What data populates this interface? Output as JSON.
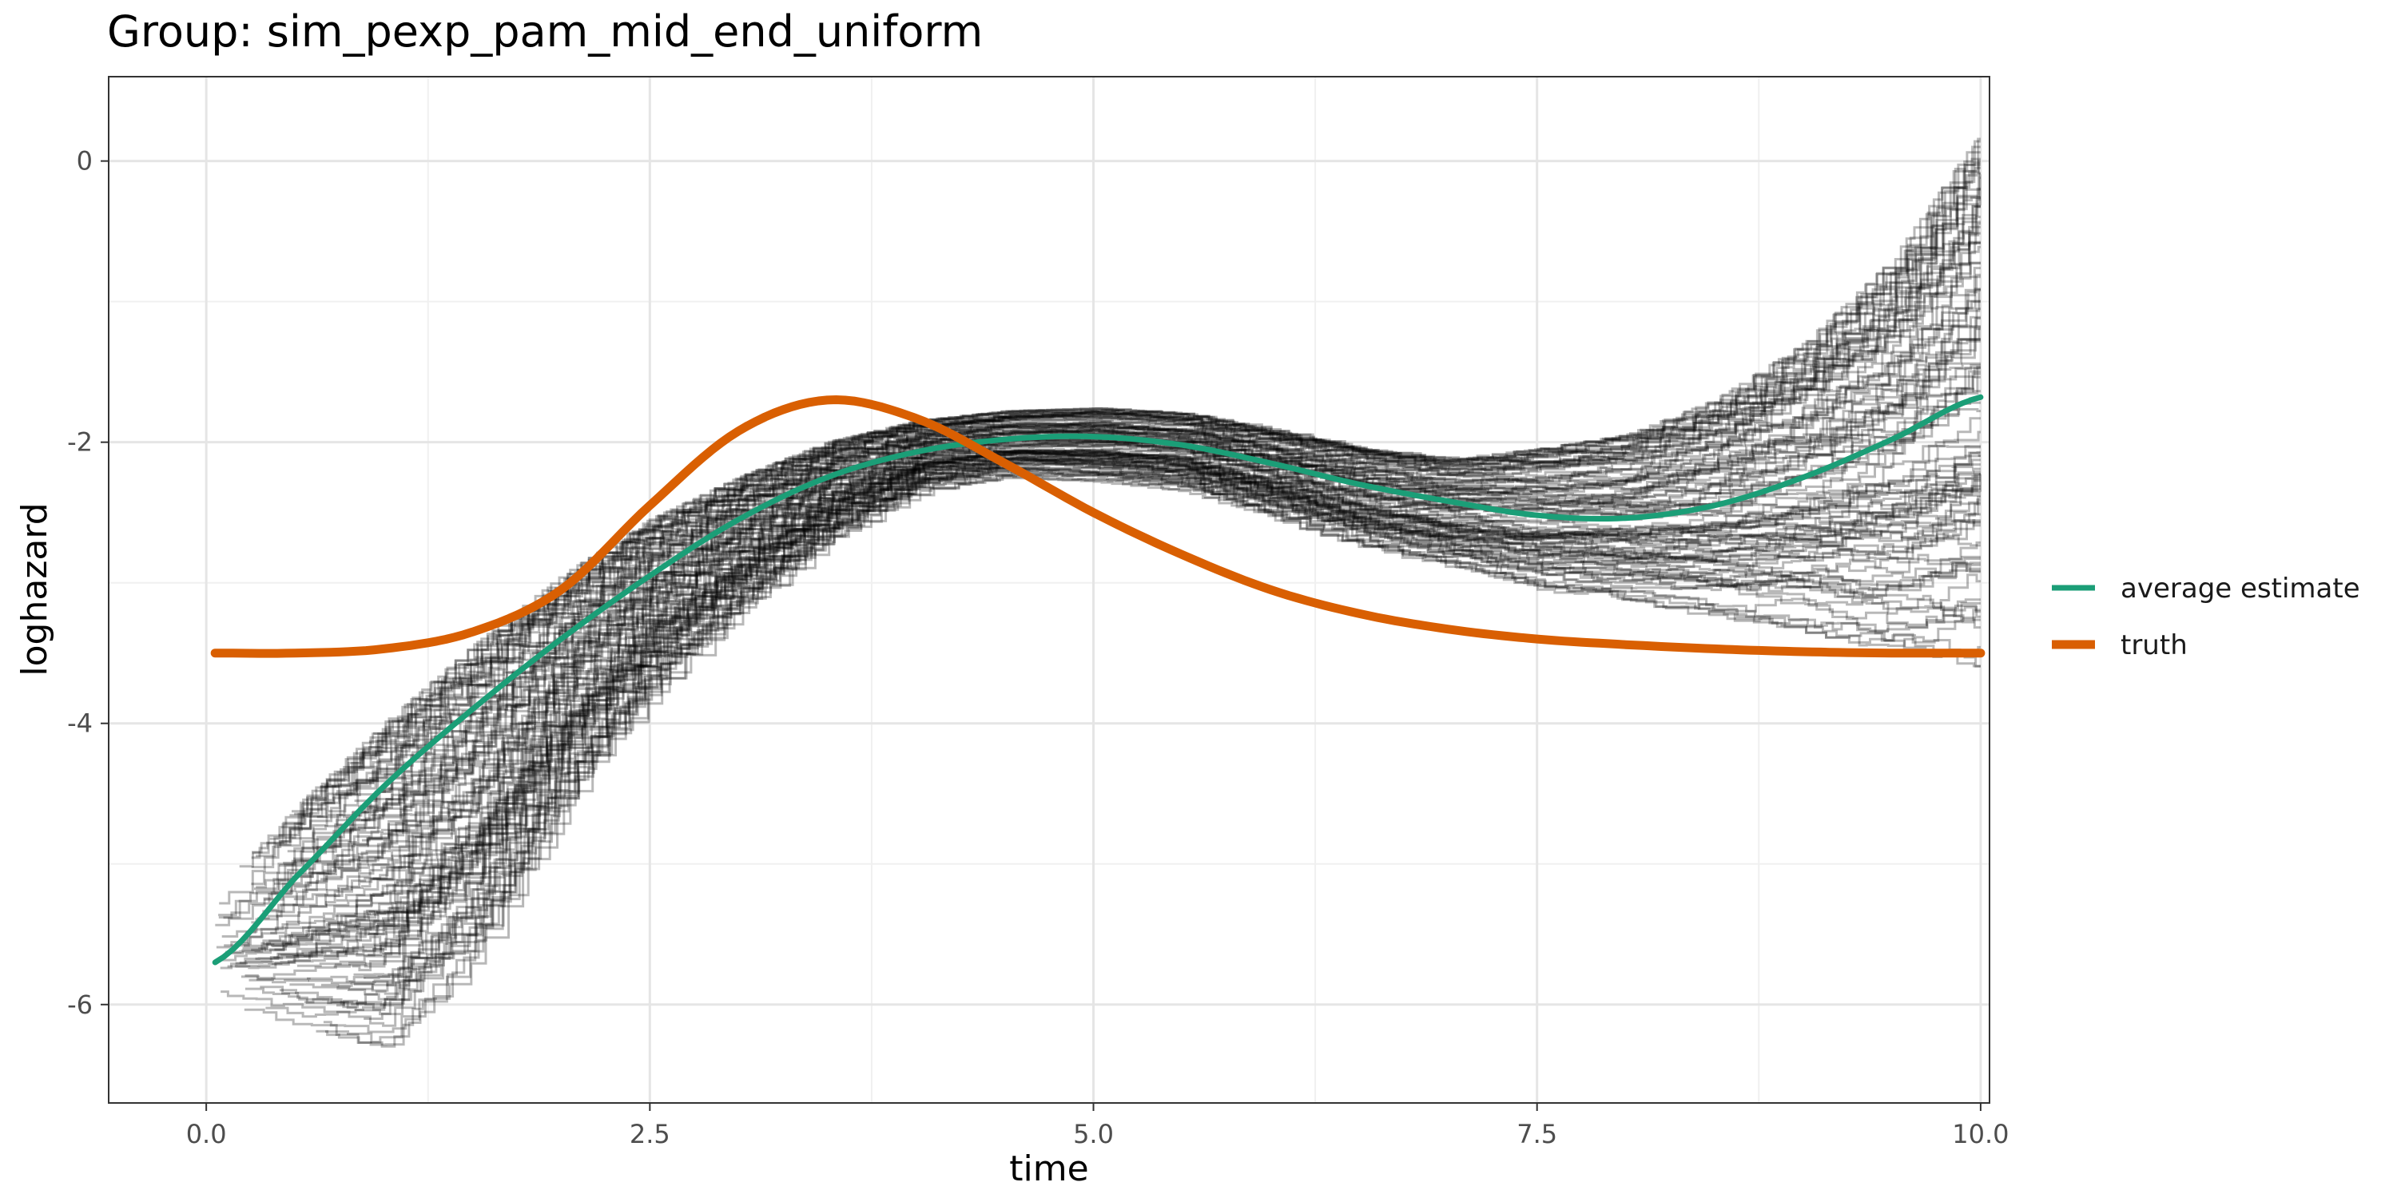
{
  "chart_data": {
    "type": "line",
    "title": "Group: sim_pexp_pam_mid_end_uniform",
    "xlabel": "time",
    "ylabel": "loghazard",
    "xlim": [
      -0.55,
      10.05
    ],
    "ylim": [
      -6.7,
      0.6
    ],
    "x_ticks": [
      0,
      2.5,
      5,
      7.5,
      10
    ],
    "x_tick_labels": [
      "0.0",
      "2.5",
      "5.0",
      "7.5",
      "10.0"
    ],
    "y_ticks": [
      0,
      -2,
      -4,
      -6
    ],
    "y_tick_labels": [
      "0",
      "-2",
      "-4",
      "-6"
    ],
    "grid": true,
    "legend_position": "right",
    "series": [
      {
        "name": "average estimate",
        "color": "#1b9e77",
        "x": [
          0.05,
          0.5,
          1.0,
          1.5,
          2.0,
          2.5,
          3.0,
          3.5,
          4.0,
          4.5,
          5.0,
          5.5,
          6.0,
          6.5,
          7.0,
          7.5,
          8.0,
          8.5,
          9.0,
          9.5,
          10.0
        ],
        "y": [
          -5.7,
          -5.1,
          -4.45,
          -3.9,
          -3.4,
          -2.95,
          -2.55,
          -2.25,
          -2.07,
          -1.98,
          -1.96,
          -2.02,
          -2.15,
          -2.3,
          -2.42,
          -2.52,
          -2.54,
          -2.45,
          -2.25,
          -1.98,
          -1.68
        ]
      },
      {
        "name": "truth",
        "color": "#d95f02",
        "x": [
          0.05,
          0.5,
          1.0,
          1.5,
          2.0,
          2.5,
          3.0,
          3.5,
          4.0,
          4.5,
          5.0,
          5.5,
          6.0,
          6.5,
          7.0,
          7.5,
          8.0,
          8.5,
          9.0,
          9.5,
          10.0
        ],
        "y": [
          -3.5,
          -3.5,
          -3.47,
          -3.35,
          -3.05,
          -2.45,
          -1.92,
          -1.7,
          -1.83,
          -2.15,
          -2.5,
          -2.8,
          -3.05,
          -3.22,
          -3.33,
          -3.4,
          -3.44,
          -3.47,
          -3.49,
          -3.5,
          -3.5
        ]
      }
    ],
    "simulation_band": {
      "description_color": "#000000",
      "x": [
        0.05,
        0.5,
        1.0,
        1.5,
        2.0,
        2.5,
        3.0,
        3.5,
        4.0,
        4.5,
        5.0,
        5.5,
        6.0,
        6.5,
        7.0,
        7.5,
        8.0,
        8.5,
        9.0,
        9.5,
        10.0
      ],
      "lower": [
        -6.0,
        -6.2,
        -6.3,
        -5.7,
        -4.6,
        -3.8,
        -3.2,
        -2.7,
        -2.35,
        -2.25,
        -2.28,
        -2.35,
        -2.55,
        -2.75,
        -2.9,
        -3.05,
        -3.15,
        -3.25,
        -3.35,
        -3.5,
        -3.6
      ],
      "upper": [
        -5.2,
        -4.6,
        -4.0,
        -3.45,
        -2.95,
        -2.55,
        -2.25,
        -2.0,
        -1.85,
        -1.78,
        -1.76,
        -1.8,
        -1.92,
        -2.05,
        -2.12,
        -2.05,
        -1.95,
        -1.7,
        -1.3,
        -0.7,
        0.2
      ]
    }
  }
}
